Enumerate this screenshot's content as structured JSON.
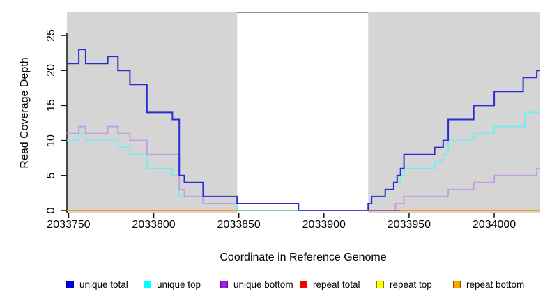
{
  "chart_data": {
    "type": "line",
    "style": "step-after",
    "title": "",
    "xlabel": "Coordinate in Reference Genome",
    "ylabel": "Read Coverage Depth",
    "xlim": [
      2033749,
      2034027
    ],
    "ylim": [
      0,
      28.4
    ],
    "x_ticks": [
      2033750,
      2033800,
      2033850,
      2033900,
      2033950,
      2034000
    ],
    "y_ticks": [
      0,
      5,
      10,
      15,
      20,
      25
    ],
    "grid": false,
    "legend_position": "bottom",
    "shaded_regions": [
      {
        "x1": 2033749,
        "x2": 2033849,
        "color": "#d5d5d5"
      },
      {
        "x1": 2033926,
        "x2": 2034027,
        "color": "#d5d5d5"
      }
    ],
    "gap_top_line_color": "#8f8f8f",
    "series": [
      {
        "name": "unique total",
        "color": "#2b2bd5",
        "points": [
          [
            2033749,
            21
          ],
          [
            2033756,
            23
          ],
          [
            2033760,
            21
          ],
          [
            2033773,
            22
          ],
          [
            2033779,
            20
          ],
          [
            2033786,
            18
          ],
          [
            2033796,
            14
          ],
          [
            2033811,
            13
          ],
          [
            2033815,
            5
          ],
          [
            2033818,
            4
          ],
          [
            2033829,
            2
          ],
          [
            2033849,
            1
          ],
          [
            2033885,
            0
          ],
          [
            2033926,
            1
          ],
          [
            2033928,
            2
          ],
          [
            2033936,
            3
          ],
          [
            2033941,
            4
          ],
          [
            2033943,
            5
          ],
          [
            2033945,
            6
          ],
          [
            2033947,
            8
          ],
          [
            2033965,
            9
          ],
          [
            2033970,
            10
          ],
          [
            2033973,
            13
          ],
          [
            2033988,
            15
          ],
          [
            2034000,
            17
          ],
          [
            2034017,
            19
          ],
          [
            2034025,
            20
          ]
        ]
      },
      {
        "name": "unique top",
        "color": "#76eded",
        "points": [
          [
            2033749,
            10
          ],
          [
            2033756,
            11
          ],
          [
            2033760,
            10
          ],
          [
            2033779,
            9
          ],
          [
            2033786,
            8
          ],
          [
            2033796,
            6
          ],
          [
            2033811,
            5
          ],
          [
            2033815,
            2
          ],
          [
            2033829,
            1
          ],
          [
            2033849,
            0
          ],
          [
            2033926,
            1
          ],
          [
            2033928,
            2
          ],
          [
            2033936,
            3
          ],
          [
            2033941,
            4
          ],
          [
            2033945,
            5
          ],
          [
            2033947,
            6
          ],
          [
            2033965,
            7
          ],
          [
            2033970,
            8
          ],
          [
            2033973,
            10
          ],
          [
            2033988,
            11
          ],
          [
            2034000,
            12
          ],
          [
            2034018,
            14
          ]
        ]
      },
      {
        "name": "unique bottom",
        "color": "#c59ce8",
        "points": [
          [
            2033749,
            11
          ],
          [
            2033756,
            12
          ],
          [
            2033760,
            11
          ],
          [
            2033773,
            12
          ],
          [
            2033779,
            11
          ],
          [
            2033786,
            10
          ],
          [
            2033796,
            8
          ],
          [
            2033815,
            3
          ],
          [
            2033818,
            2
          ],
          [
            2033829,
            1
          ],
          [
            2033885,
            0
          ],
          [
            2033942,
            1
          ],
          [
            2033947,
            2
          ],
          [
            2033973,
            3
          ],
          [
            2033988,
            4
          ],
          [
            2034000,
            5
          ],
          [
            2034025,
            6
          ]
        ]
      },
      {
        "name": "repeat total",
        "color": "#e60000",
        "points": [
          [
            2033749,
            0
          ]
        ]
      },
      {
        "name": "repeat top",
        "color": "#f5f500",
        "points": [
          [
            2033749,
            0
          ]
        ]
      },
      {
        "name": "repeat bottom",
        "color": "#ff9712",
        "points": [
          [
            2033749,
            0
          ]
        ]
      }
    ],
    "baseline_segments": [
      {
        "x1": 2033749,
        "x2": 2033849,
        "color": "#ff9712"
      },
      {
        "x1": 2033849,
        "x2": 2033885,
        "color": "#7fd99b"
      },
      {
        "x1": 2033885,
        "x2": 2033926,
        "color": "#5a3fe0"
      },
      {
        "x1": 2033926,
        "x2": 2033945,
        "color": "#c24e86"
      },
      {
        "x1": 2033945,
        "x2": 2034027,
        "color": "#ff9712"
      }
    ],
    "legend": [
      {
        "label": "unique total",
        "fill": "#0000f0",
        "border": "#000078"
      },
      {
        "label": "unique top",
        "fill": "#00ffff",
        "border": "#008b8b"
      },
      {
        "label": "unique bottom",
        "fill": "#a01ee6",
        "border": "#4b0f73"
      },
      {
        "label": "repeat total",
        "fill": "#ff0000",
        "border": "#800000"
      },
      {
        "label": "repeat top",
        "fill": "#ffff00",
        "border": "#808000"
      },
      {
        "label": "repeat bottom",
        "fill": "#ffa500",
        "border": "#805300"
      }
    ]
  }
}
